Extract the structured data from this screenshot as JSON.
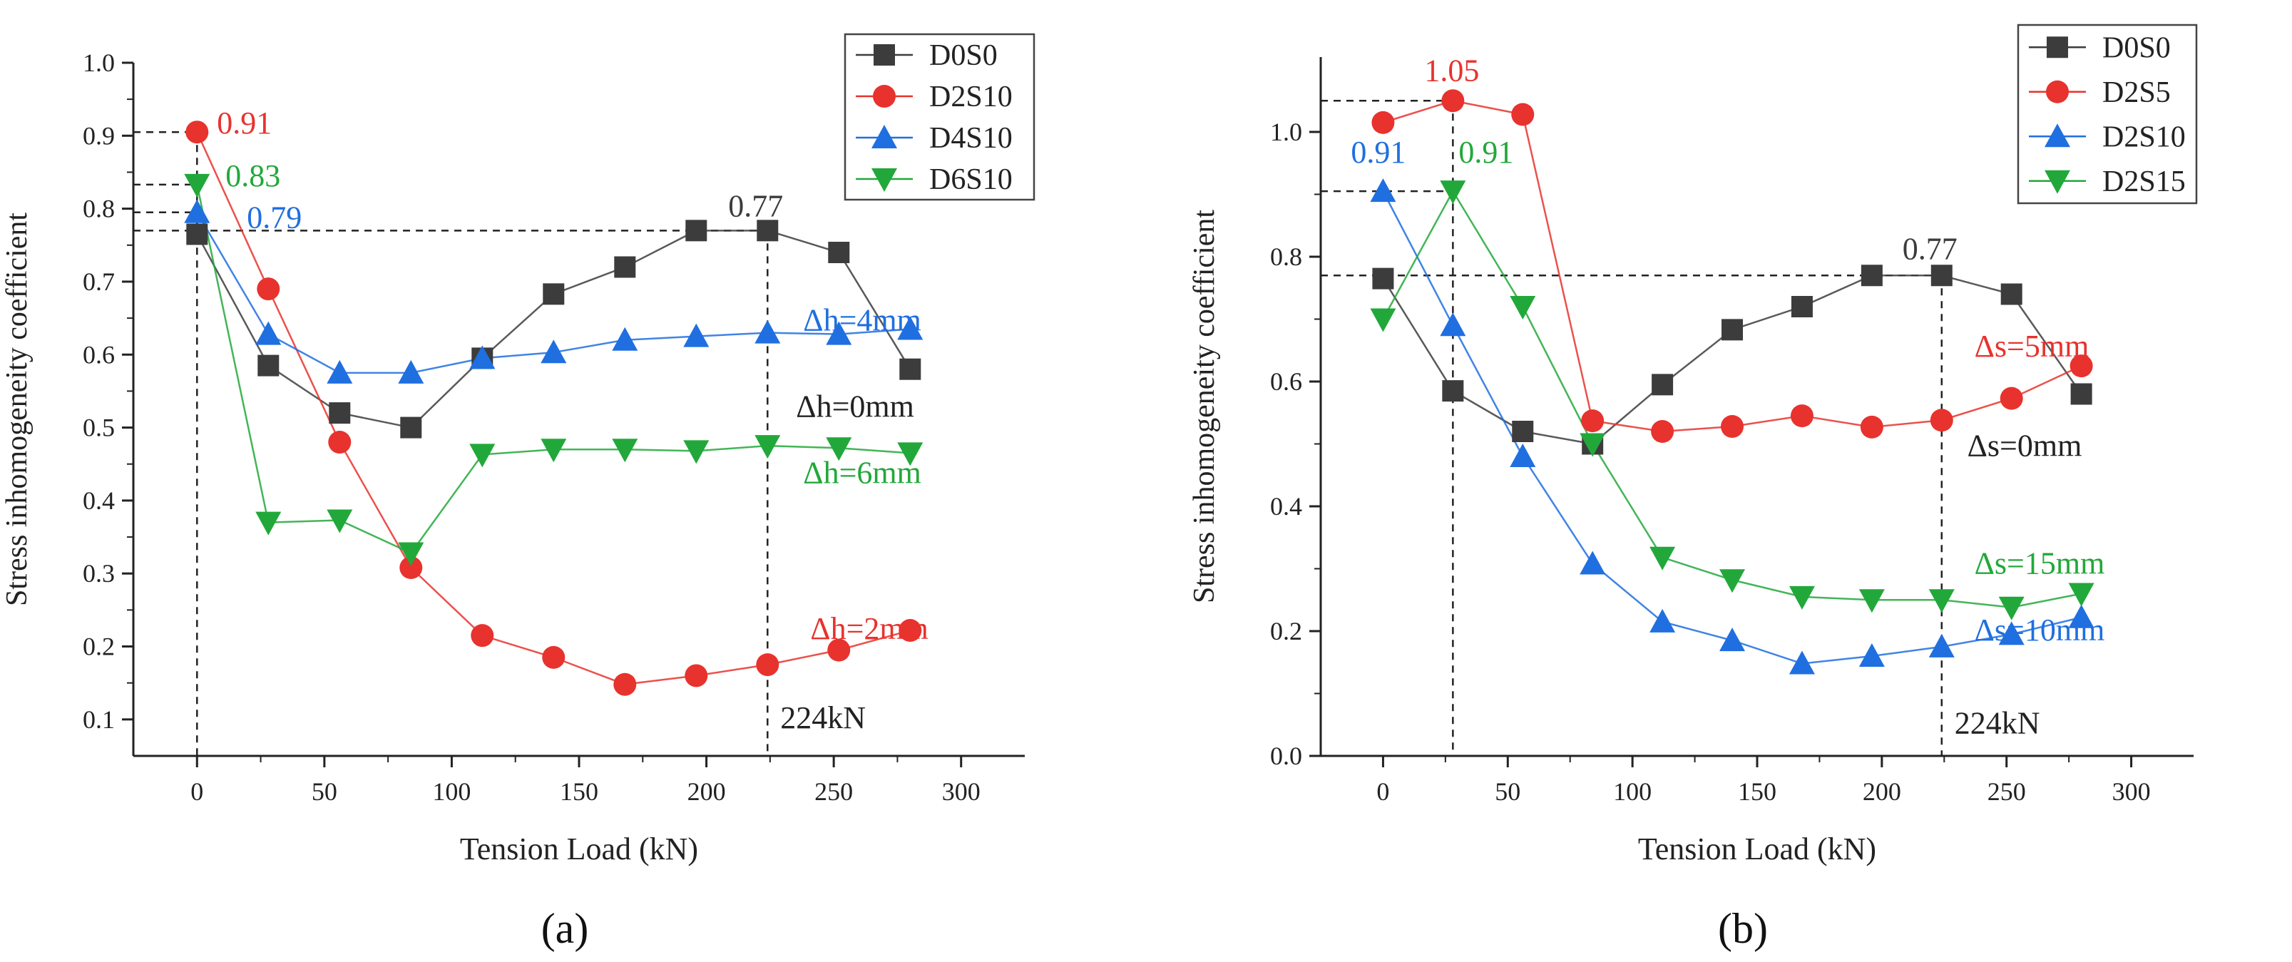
{
  "colors": {
    "D0S0": "#3c3c3c",
    "red": "#e8322d",
    "blue": "#1f6fe0",
    "green": "#22a83a",
    "axis": "#222222",
    "guide": "#222222"
  },
  "chart_data": [
    {
      "panel_label": "(a)",
      "type": "line",
      "xlabel": "Tension Load (kN)",
      "ylabel": "Stress inhomogeneity coefficient",
      "xlim": [
        -25,
        325
      ],
      "ylim": [
        0.05,
        1.0
      ],
      "xticks": [
        0,
        50,
        100,
        150,
        200,
        250,
        300
      ],
      "yticks": [
        0.1,
        0.2,
        0.3,
        0.4,
        0.5,
        0.6,
        0.7,
        0.8,
        0.9,
        1.0
      ],
      "grid": false,
      "legend_position": "top-right",
      "x": [
        0,
        28,
        56,
        84,
        112,
        140,
        168,
        196,
        224,
        252,
        280
      ],
      "series": [
        {
          "name": "D0S0",
          "marker": "square",
          "color": "#3c3c3c",
          "values": [
            0.765,
            0.585,
            0.52,
            0.5,
            0.595,
            0.683,
            0.72,
            0.77,
            0.77,
            0.74,
            0.58
          ]
        },
        {
          "name": "D2S10",
          "marker": "circle",
          "color": "#e8322d",
          "values": [
            0.905,
            0.69,
            0.48,
            0.308,
            0.215,
            0.185,
            0.148,
            0.16,
            0.175,
            0.195,
            0.222
          ]
        },
        {
          "name": "D4S10",
          "marker": "triangle-up",
          "color": "#1f6fe0",
          "values": [
            0.795,
            0.628,
            0.575,
            0.575,
            0.595,
            0.603,
            0.62,
            0.625,
            0.63,
            0.628,
            0.635
          ]
        },
        {
          "name": "D6S10",
          "marker": "triangle-down",
          "color": "#22a83a",
          "values": [
            0.833,
            0.37,
            0.373,
            0.328,
            0.463,
            0.47,
            0.47,
            0.468,
            0.475,
            0.472,
            0.465
          ]
        }
      ],
      "annotations": [
        {
          "text": "0.91",
          "color": "#e8322d",
          "x": 0,
          "y": 0.905
        },
        {
          "text": "0.83",
          "color": "#22a83a",
          "x": 0,
          "y": 0.833
        },
        {
          "text": "0.79",
          "color": "#1f6fe0",
          "x": 0,
          "y": 0.795
        },
        {
          "text": "0.77",
          "color": "#3c3c3c",
          "x": 224,
          "y": 0.77
        },
        {
          "text": "224kN",
          "color": "#222222",
          "x": 224,
          "y": 0.1
        },
        {
          "text": "Δh=4mm",
          "color": "#1f6fe0",
          "x": 280,
          "y": 0.635
        },
        {
          "text": "Δh=0mm",
          "color": "#222222",
          "x": 280,
          "y": 0.58
        },
        {
          "text": "Δh=6mm",
          "color": "#22a83a",
          "x": 280,
          "y": 0.465
        },
        {
          "text": "Δh=2mm",
          "color": "#e8322d",
          "x": 280,
          "y": 0.222
        }
      ],
      "guides": {
        "hlines": [
          0.905,
          0.833,
          0.795,
          0.77
        ],
        "vlines": [
          0,
          224
        ]
      }
    },
    {
      "panel_label": "(b)",
      "type": "line",
      "xlabel": "Tension Load (kN)",
      "ylabel": "Stress inhomogeneity coefficient",
      "xlim": [
        -25,
        325
      ],
      "ylim": [
        0.0,
        1.12
      ],
      "xticks": [
        0,
        50,
        100,
        150,
        200,
        250,
        300
      ],
      "yticks": [
        0.0,
        0.2,
        0.4,
        0.6,
        0.8,
        1.0
      ],
      "grid": false,
      "legend_position": "top-right",
      "x": [
        0,
        28,
        56,
        84,
        112,
        140,
        168,
        196,
        224,
        252,
        280
      ],
      "series": [
        {
          "name": "D0S0",
          "marker": "square",
          "color": "#3c3c3c",
          "values": [
            0.765,
            0.585,
            0.52,
            0.5,
            0.595,
            0.683,
            0.72,
            0.77,
            0.77,
            0.74,
            0.58
          ]
        },
        {
          "name": "D2S5",
          "marker": "circle",
          "color": "#e8322d",
          "values": [
            1.015,
            1.05,
            1.028,
            0.537,
            0.52,
            0.528,
            0.545,
            0.527,
            0.538,
            0.573,
            0.625
          ]
        },
        {
          "name": "D2S10",
          "marker": "triangle-up",
          "color": "#1f6fe0",
          "values": [
            0.905,
            0.69,
            0.48,
            0.308,
            0.215,
            0.185,
            0.148,
            0.16,
            0.175,
            0.195,
            0.222
          ]
        },
        {
          "name": "D2S15",
          "marker": "triangle-down",
          "color": "#22a83a",
          "values": [
            0.7,
            0.905,
            0.72,
            0.5,
            0.318,
            0.282,
            0.255,
            0.25,
            0.25,
            0.238,
            0.26
          ]
        }
      ],
      "annotations": [
        {
          "text": "1.05",
          "color": "#e8322d",
          "x": 28,
          "y": 1.05
        },
        {
          "text": "0.91",
          "color": "#1f6fe0",
          "x": 0,
          "y": 0.905
        },
        {
          "text": "0.91",
          "color": "#22a83a",
          "x": 28,
          "y": 0.905
        },
        {
          "text": "0.77",
          "color": "#3c3c3c",
          "x": 224,
          "y": 0.77
        },
        {
          "text": "224kN",
          "color": "#222222",
          "x": 224,
          "y": 0.05
        },
        {
          "text": "Δs=5mm",
          "color": "#e8322d",
          "x": 280,
          "y": 0.625
        },
        {
          "text": "Δs=0mm",
          "color": "#222222",
          "x": 280,
          "y": 0.58
        },
        {
          "text": "Δs=15mm",
          "color": "#22a83a",
          "x": 280,
          "y": 0.26
        },
        {
          "text": "Δs=10mm",
          "color": "#1f6fe0",
          "x": 280,
          "y": 0.222
        }
      ],
      "guides": {
        "hlines": [
          1.05,
          0.905,
          0.77
        ],
        "vlines": [
          28,
          224
        ]
      }
    }
  ]
}
